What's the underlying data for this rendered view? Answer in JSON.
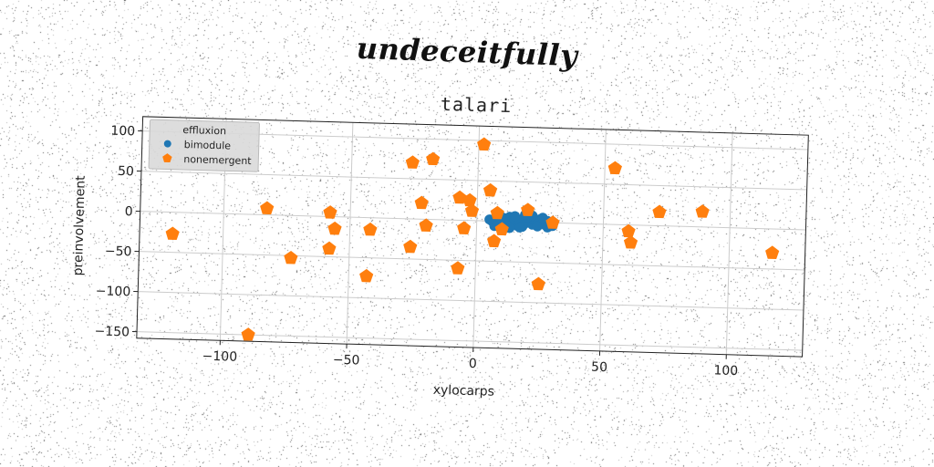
{
  "supertitle": "undeceitfully",
  "chart_data": {
    "type": "scatter",
    "title": "talari",
    "xlabel": "xylocarps",
    "ylabel": "preinvolvement",
    "xlim": [
      -133,
      130
    ],
    "ylim": [
      -158,
      118
    ],
    "xticks": [
      -100,
      -50,
      0,
      50,
      100
    ],
    "yticks": [
      100,
      50,
      0,
      -50,
      -100,
      -150
    ],
    "grid": true,
    "legend": {
      "title": "effluxion",
      "placement": "top-left",
      "entries": [
        "bimodule",
        "nonemergent"
      ]
    },
    "series": [
      {
        "name": "bimodule",
        "color": "#1f77b4",
        "marker": "circle",
        "points": [
          [
            6,
            0
          ],
          [
            7,
            3
          ],
          [
            8,
            -2
          ],
          [
            9,
            5
          ],
          [
            10,
            1
          ],
          [
            11,
            -4
          ],
          [
            12,
            2
          ],
          [
            13,
            6
          ],
          [
            14,
            -1
          ],
          [
            15,
            3
          ],
          [
            16,
            -5
          ],
          [
            17,
            0
          ],
          [
            18,
            4
          ],
          [
            19,
            -2
          ],
          [
            20,
            1
          ],
          [
            21,
            5
          ],
          [
            22,
            -3
          ],
          [
            23,
            2
          ],
          [
            24,
            -1
          ],
          [
            25,
            4
          ],
          [
            26,
            0
          ],
          [
            27,
            -3
          ],
          [
            28,
            2
          ],
          [
            29,
            -1
          ],
          [
            30,
            -4
          ],
          [
            7,
            -6
          ],
          [
            12,
            -5
          ],
          [
            18,
            -6
          ],
          [
            24,
            -5
          ],
          [
            15,
            7
          ],
          [
            20,
            6
          ],
          [
            9,
            8
          ],
          [
            26,
            6
          ],
          [
            5,
            2
          ],
          [
            11,
            4
          ],
          [
            22,
            8
          ],
          [
            17,
            -7
          ],
          [
            13,
            -8
          ],
          [
            28,
            -6
          ],
          [
            19,
            9
          ]
        ]
      },
      {
        "name": "nonemergent",
        "color": "#ff7f0e",
        "marker": "pentagon",
        "points": [
          [
            2,
            95
          ],
          [
            -26,
            70
          ],
          [
            -18,
            75
          ],
          [
            54,
            70
          ],
          [
            5,
            38
          ],
          [
            -22,
            20
          ],
          [
            -7,
            28
          ],
          [
            -3,
            25
          ],
          [
            -2,
            12
          ],
          [
            8,
            10
          ],
          [
            20,
            15
          ],
          [
            30,
            0
          ],
          [
            -83,
            8
          ],
          [
            -58,
            5
          ],
          [
            -56,
            -15
          ],
          [
            -42,
            -15
          ],
          [
            -20,
            -8
          ],
          [
            -5,
            -10
          ],
          [
            10,
            -10
          ],
          [
            7,
            -25
          ],
          [
            60,
            -8
          ],
          [
            61,
            -22
          ],
          [
            72,
            17
          ],
          [
            89,
            19
          ],
          [
            -120,
            -27
          ],
          [
            -58,
            -40
          ],
          [
            -26,
            -35
          ],
          [
            -73,
            -53
          ],
          [
            -7,
            -60
          ],
          [
            -43,
            -73
          ],
          [
            25,
            -77
          ],
          [
            117,
            -30
          ],
          [
            -89,
            -150
          ]
        ]
      }
    ]
  }
}
